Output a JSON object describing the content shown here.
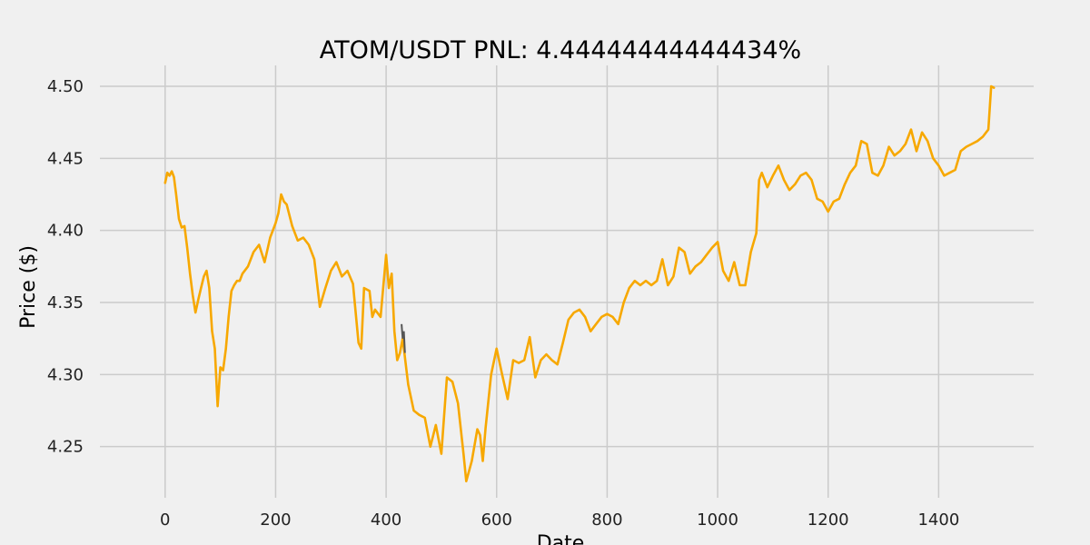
{
  "chart_data": {
    "type": "line",
    "title": "ATOM/USDT  PNL: 4.44444444444434%",
    "xlabel": "Date",
    "ylabel": "Price ($)",
    "xlim": [
      -118,
      1572
    ],
    "ylim": [
      4.2145,
      4.5145
    ],
    "x_ticks": [
      0,
      200,
      400,
      600,
      800,
      1000,
      1200,
      1400
    ],
    "x_tick_labels": [
      "0",
      "200",
      "400",
      "600",
      "800",
      "1000",
      "1200",
      "1400"
    ],
    "y_ticks": [
      4.25,
      4.3,
      4.35,
      4.4,
      4.45,
      4.5
    ],
    "y_tick_labels": [
      "4.25",
      "4.30",
      "4.35",
      "4.40",
      "4.45",
      "4.50"
    ],
    "grid": true,
    "colors": {
      "background": "#f0f0f0",
      "grid": "#cbcbcb",
      "line": "#f7a800",
      "highlight_segment": "#555555"
    },
    "series": [
      {
        "points": [
          [
            0,
            4.433
          ],
          [
            4,
            4.44
          ],
          [
            8,
            4.438
          ],
          [
            12,
            4.441
          ],
          [
            16,
            4.437
          ],
          [
            20,
            4.425
          ],
          [
            25,
            4.408
          ],
          [
            30,
            4.402
          ],
          [
            35,
            4.403
          ],
          [
            40,
            4.388
          ],
          [
            45,
            4.37
          ],
          [
            50,
            4.355
          ],
          [
            55,
            4.343
          ],
          [
            60,
            4.352
          ],
          [
            65,
            4.36
          ],
          [
            70,
            4.368
          ],
          [
            75,
            4.372
          ],
          [
            80,
            4.36
          ],
          [
            85,
            4.33
          ],
          [
            90,
            4.318
          ],
          [
            95,
            4.278
          ],
          [
            100,
            4.305
          ],
          [
            105,
            4.303
          ],
          [
            110,
            4.318
          ],
          [
            115,
            4.34
          ],
          [
            120,
            4.358
          ],
          [
            125,
            4.362
          ],
          [
            130,
            4.365
          ],
          [
            135,
            4.365
          ],
          [
            140,
            4.37
          ],
          [
            150,
            4.375
          ],
          [
            160,
            4.385
          ],
          [
            170,
            4.39
          ],
          [
            180,
            4.378
          ],
          [
            190,
            4.395
          ],
          [
            200,
            4.405
          ],
          [
            205,
            4.412
          ],
          [
            210,
            4.425
          ],
          [
            215,
            4.42
          ],
          [
            220,
            4.418
          ],
          [
            230,
            4.403
          ],
          [
            240,
            4.393
          ],
          [
            250,
            4.395
          ],
          [
            260,
            4.39
          ],
          [
            270,
            4.38
          ],
          [
            280,
            4.347
          ],
          [
            290,
            4.36
          ],
          [
            300,
            4.372
          ],
          [
            310,
            4.378
          ],
          [
            320,
            4.368
          ],
          [
            330,
            4.372
          ],
          [
            340,
            4.363
          ],
          [
            350,
            4.322
          ],
          [
            355,
            4.318
          ],
          [
            360,
            4.36
          ],
          [
            370,
            4.358
          ],
          [
            375,
            4.34
          ],
          [
            380,
            4.345
          ],
          [
            390,
            4.34
          ],
          [
            400,
            4.383
          ],
          [
            405,
            4.36
          ],
          [
            410,
            4.37
          ],
          [
            415,
            4.33
          ],
          [
            420,
            4.31
          ],
          [
            425,
            4.315
          ],
          [
            430,
            4.325
          ],
          [
            440,
            4.293
          ],
          [
            450,
            4.275
          ],
          [
            460,
            4.272
          ],
          [
            470,
            4.27
          ],
          [
            480,
            4.25
          ],
          [
            490,
            4.265
          ],
          [
            500,
            4.245
          ],
          [
            510,
            4.298
          ],
          [
            520,
            4.295
          ],
          [
            530,
            4.28
          ],
          [
            540,
            4.245
          ],
          [
            545,
            4.226
          ],
          [
            555,
            4.24
          ],
          [
            565,
            4.262
          ],
          [
            570,
            4.258
          ],
          [
            575,
            4.24
          ],
          [
            580,
            4.263
          ],
          [
            590,
            4.3
          ],
          [
            600,
            4.318
          ],
          [
            610,
            4.3
          ],
          [
            620,
            4.283
          ],
          [
            630,
            4.31
          ],
          [
            640,
            4.308
          ],
          [
            650,
            4.31
          ],
          [
            660,
            4.326
          ],
          [
            670,
            4.298
          ],
          [
            680,
            4.31
          ],
          [
            690,
            4.314
          ],
          [
            700,
            4.31
          ],
          [
            710,
            4.307
          ],
          [
            720,
            4.322
          ],
          [
            730,
            4.338
          ],
          [
            740,
            4.343
          ],
          [
            750,
            4.345
          ],
          [
            760,
            4.34
          ],
          [
            770,
            4.33
          ],
          [
            780,
            4.335
          ],
          [
            790,
            4.34
          ],
          [
            800,
            4.342
          ],
          [
            810,
            4.34
          ],
          [
            820,
            4.335
          ],
          [
            830,
            4.35
          ],
          [
            840,
            4.36
          ],
          [
            850,
            4.365
          ],
          [
            860,
            4.362
          ],
          [
            870,
            4.365
          ],
          [
            880,
            4.362
          ],
          [
            890,
            4.365
          ],
          [
            900,
            4.38
          ],
          [
            910,
            4.362
          ],
          [
            920,
            4.368
          ],
          [
            930,
            4.388
          ],
          [
            940,
            4.385
          ],
          [
            950,
            4.37
          ],
          [
            960,
            4.375
          ],
          [
            970,
            4.378
          ],
          [
            980,
            4.383
          ],
          [
            990,
            4.388
          ],
          [
            1000,
            4.392
          ],
          [
            1010,
            4.372
          ],
          [
            1020,
            4.365
          ],
          [
            1030,
            4.378
          ],
          [
            1040,
            4.362
          ],
          [
            1050,
            4.362
          ],
          [
            1060,
            4.385
          ],
          [
            1070,
            4.398
          ],
          [
            1075,
            4.435
          ],
          [
            1080,
            4.44
          ],
          [
            1090,
            4.43
          ],
          [
            1100,
            4.438
          ],
          [
            1110,
            4.445
          ],
          [
            1120,
            4.435
          ],
          [
            1130,
            4.428
          ],
          [
            1140,
            4.432
          ],
          [
            1150,
            4.438
          ],
          [
            1160,
            4.44
          ],
          [
            1170,
            4.435
          ],
          [
            1180,
            4.422
          ],
          [
            1190,
            4.42
          ],
          [
            1200,
            4.413
          ],
          [
            1210,
            4.42
          ],
          [
            1220,
            4.422
          ],
          [
            1230,
            4.432
          ],
          [
            1240,
            4.44
          ],
          [
            1250,
            4.445
          ],
          [
            1260,
            4.462
          ],
          [
            1270,
            4.46
          ],
          [
            1280,
            4.44
          ],
          [
            1290,
            4.438
          ],
          [
            1300,
            4.445
          ],
          [
            1310,
            4.458
          ],
          [
            1320,
            4.452
          ],
          [
            1330,
            4.455
          ],
          [
            1340,
            4.46
          ],
          [
            1350,
            4.47
          ],
          [
            1360,
            4.455
          ],
          [
            1370,
            4.468
          ],
          [
            1380,
            4.462
          ],
          [
            1390,
            4.45
          ],
          [
            1400,
            4.445
          ],
          [
            1410,
            4.438
          ],
          [
            1420,
            4.44
          ],
          [
            1430,
            4.442
          ],
          [
            1440,
            4.455
          ],
          [
            1450,
            4.458
          ],
          [
            1460,
            4.46
          ],
          [
            1470,
            4.462
          ],
          [
            1480,
            4.465
          ],
          [
            1490,
            4.47
          ],
          [
            1495,
            4.5
          ],
          [
            1500,
            4.499
          ]
        ]
      }
    ],
    "highlight_segment": [
      [
        428,
        4.335
      ],
      [
        430,
        4.325
      ],
      [
        432,
        4.33
      ],
      [
        434,
        4.315
      ]
    ]
  }
}
